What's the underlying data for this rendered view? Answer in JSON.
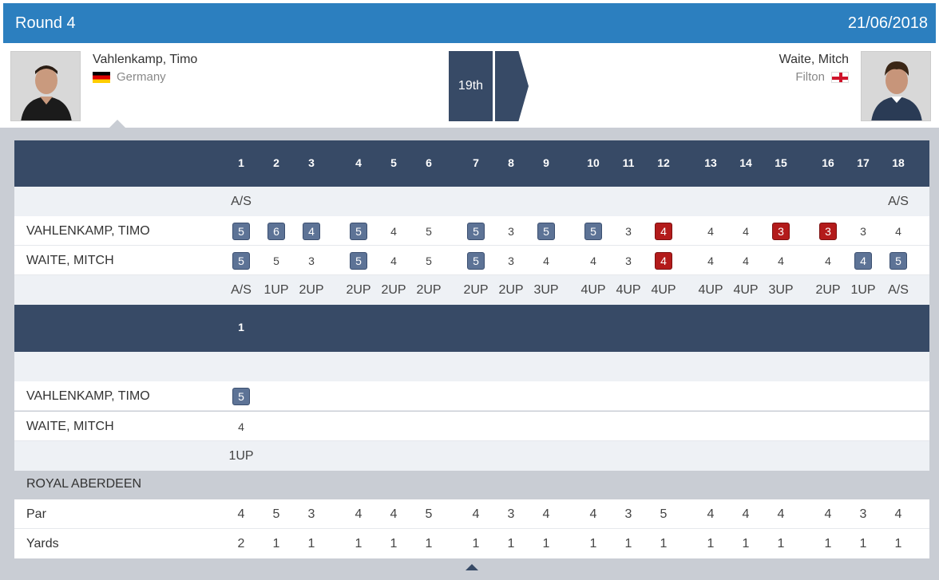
{
  "header": {
    "round": "Round 4",
    "date": "21/06/2018"
  },
  "players": {
    "left": {
      "name": "Vahlenkamp, Timo",
      "country": "Germany",
      "flag_icon": "germany-flag-icon"
    },
    "right": {
      "name": "Waite, Mitch",
      "country": "Filton",
      "flag_icon": "england-flag-icon"
    }
  },
  "match": {
    "current_hole": "19th"
  },
  "main_card": {
    "holes": [
      "1",
      "2",
      "3",
      "4",
      "5",
      "6",
      "7",
      "8",
      "9",
      "10",
      "11",
      "12",
      "13",
      "14",
      "15",
      "16",
      "17",
      "18"
    ],
    "top_status": [
      "A/S",
      "",
      "",
      "",
      "",
      "",
      "",
      "",
      "",
      "",
      "",
      "",
      "",
      "",
      "",
      "",
      "",
      "A/S"
    ],
    "rows": [
      {
        "name": "VAHLENKAMP, TIMO",
        "scores": [
          {
            "v": "5",
            "s": "badge"
          },
          {
            "v": "6",
            "s": "badge"
          },
          {
            "v": "4",
            "s": "badge"
          },
          {
            "v": "5",
            "s": "badge"
          },
          {
            "v": "4",
            "s": ""
          },
          {
            "v": "5",
            "s": ""
          },
          {
            "v": "5",
            "s": "badge"
          },
          {
            "v": "3",
            "s": ""
          },
          {
            "v": "5",
            "s": "badge"
          },
          {
            "v": "5",
            "s": "badge"
          },
          {
            "v": "3",
            "s": ""
          },
          {
            "v": "4",
            "s": "red"
          },
          {
            "v": "4",
            "s": ""
          },
          {
            "v": "4",
            "s": ""
          },
          {
            "v": "3",
            "s": "red"
          },
          {
            "v": "3",
            "s": "red"
          },
          {
            "v": "3",
            "s": ""
          },
          {
            "v": "4",
            "s": ""
          }
        ]
      },
      {
        "name": "WAITE, MITCH",
        "scores": [
          {
            "v": "5",
            "s": "badge"
          },
          {
            "v": "5",
            "s": ""
          },
          {
            "v": "3",
            "s": ""
          },
          {
            "v": "5",
            "s": "badge"
          },
          {
            "v": "4",
            "s": ""
          },
          {
            "v": "5",
            "s": ""
          },
          {
            "v": "5",
            "s": "badge"
          },
          {
            "v": "3",
            "s": ""
          },
          {
            "v": "4",
            "s": ""
          },
          {
            "v": "4",
            "s": ""
          },
          {
            "v": "3",
            "s": ""
          },
          {
            "v": "4",
            "s": "red"
          },
          {
            "v": "4",
            "s": ""
          },
          {
            "v": "4",
            "s": ""
          },
          {
            "v": "4",
            "s": ""
          },
          {
            "v": "4",
            "s": ""
          },
          {
            "v": "4",
            "s": "badge"
          },
          {
            "v": "5",
            "s": "badge"
          }
        ]
      }
    ],
    "bottom_status": [
      "A/S",
      "1UP",
      "2UP",
      "2UP",
      "2UP",
      "2UP",
      "2UP",
      "2UP",
      "3UP",
      "4UP",
      "4UP",
      "4UP",
      "4UP",
      "4UP",
      "3UP",
      "2UP",
      "1UP",
      "A/S"
    ]
  },
  "extra_card": {
    "holes": [
      "1"
    ],
    "rows": [
      {
        "name": "VAHLENKAMP, TIMO",
        "scores": [
          {
            "v": "5",
            "s": "badge"
          }
        ]
      },
      {
        "name": "WAITE, MITCH",
        "scores": [
          {
            "v": "4",
            "s": ""
          }
        ]
      }
    ],
    "bottom_status": [
      "1UP"
    ]
  },
  "course": {
    "name": "ROYAL ABERDEEN",
    "par_label": "Par",
    "par": [
      "4",
      "5",
      "3",
      "4",
      "4",
      "5",
      "4",
      "3",
      "4",
      "4",
      "3",
      "5",
      "4",
      "4",
      "4",
      "4",
      "3",
      "4"
    ],
    "yards_label": "Yards",
    "yards": [
      "2",
      "1",
      "1",
      "1",
      "1",
      "1",
      "1",
      "1",
      "1",
      "1",
      "1",
      "1",
      "1",
      "1",
      "1",
      "1",
      "1",
      "1"
    ]
  }
}
